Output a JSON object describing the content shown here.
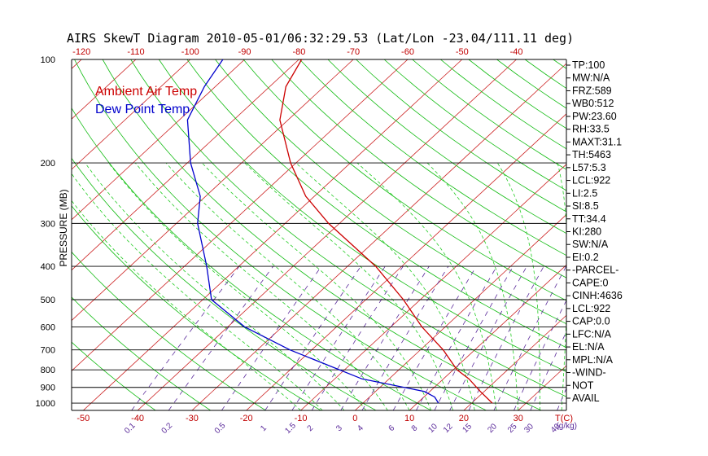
{
  "title": "AIRS SkewT Diagram 2010-05-01/06:32:29.53 (Lat/Lon -23.04/111.11 deg)",
  "chart_data": {
    "type": "line",
    "title": "AIRS SkewT Diagram 2010-05-01/06:32:29.53 (Lat/Lon -23.04/111.11 deg)",
    "ylabel": "PRESSURE (MB)",
    "yscale": "log",
    "ylim": [
      1050,
      100
    ],
    "pressure_ticks": [
      100,
      200,
      300,
      400,
      500,
      600,
      700,
      800,
      900,
      1000
    ],
    "pressure_tick_labels": [
      "100",
      "200",
      "300",
      "400",
      "500",
      "600",
      "700",
      "800",
      "900",
      "1000"
    ],
    "temp_ticks_top": [
      -120,
      -110,
      -100,
      -90,
      -80,
      -70,
      -60,
      -50,
      -40
    ],
    "temp_tick_labels_top": [
      "-120",
      "-110",
      "-100",
      "-90",
      "-80",
      "-70",
      "-60",
      "-50",
      "-40"
    ],
    "temp_ticks_bottom": [
      -50,
      -40,
      -30,
      -20,
      -10,
      0,
      10,
      20,
      30
    ],
    "temp_tick_labels_bottom": [
      "-50",
      "-40",
      "-30",
      "-20",
      "-10",
      "0",
      "10",
      "20",
      "30"
    ],
    "temp_axis_unit_label": "T(C)",
    "mixing_ratio_labels": [
      "0.1",
      "0.2",
      "0.5",
      "1",
      "1.5",
      "2",
      "3",
      "4",
      "6",
      "8",
      "10",
      "12",
      "15",
      "20",
      "25",
      "30",
      "40"
    ],
    "mixing_ratio_unit_label": "(g/kg)",
    "legend": [
      {
        "label": "Ambient Air Temp",
        "color": "#cc0000"
      },
      {
        "label": "Dew Point Temp",
        "color": "#0000cc"
      }
    ],
    "series": [
      {
        "name": "Ambient Air Temp",
        "color": "#cc0000",
        "points": [
          {
            "p": 1000,
            "t": 23.8
          },
          {
            "p": 925,
            "t": 19.3
          },
          {
            "p": 850,
            "t": 14.7
          },
          {
            "p": 800,
            "t": 10.7
          },
          {
            "p": 700,
            "t": 4.2
          },
          {
            "p": 600,
            "t": -4.3
          },
          {
            "p": 500,
            "t": -13.1
          },
          {
            "p": 400,
            "t": -24.8
          },
          {
            "p": 300,
            "t": -42.0
          },
          {
            "p": 250,
            "t": -51.6
          },
          {
            "p": 200,
            "t": -61.0
          },
          {
            "p": 150,
            "t": -71.5
          },
          {
            "p": 120,
            "t": -77.0
          },
          {
            "p": 100,
            "t": -79.5
          }
        ]
      },
      {
        "name": "Dew Point Temp",
        "color": "#0000cc",
        "points": [
          {
            "p": 1000,
            "t": 13.9
          },
          {
            "p": 960,
            "t": 12.0
          },
          {
            "p": 925,
            "t": 9.0
          },
          {
            "p": 850,
            "t": -5.0
          },
          {
            "p": 700,
            "t": -24.0
          },
          {
            "p": 600,
            "t": -36.9
          },
          {
            "p": 500,
            "t": -48.4
          },
          {
            "p": 400,
            "t": -55.9
          },
          {
            "p": 300,
            "t": -66.1
          },
          {
            "p": 250,
            "t": -71.0
          },
          {
            "p": 200,
            "t": -79.4
          },
          {
            "p": 150,
            "t": -88.5
          },
          {
            "p": 120,
            "t": -92.0
          },
          {
            "p": 100,
            "t": -94.0
          }
        ]
      }
    ],
    "indices": [
      "TP:100",
      "MW:N/A",
      "FRZ:589",
      "WB0:512",
      "PW:23.60",
      "RH:33.5",
      "MAXT:31.1",
      "TH:5463",
      "L57:5.3",
      "LCL:922",
      "LI:2.5",
      "SI:8.5",
      "TT:34.4",
      "KI:280",
      "SW:N/A",
      "EI:0.2",
      "-PARCEL-",
      "CAPE:0",
      "CINH:4636",
      "LCL:922",
      "CAP:0.0",
      "LFC:N/A",
      "EL:N/A",
      "MPL:N/A",
      "-WIND-",
      "NOT",
      "AVAIL"
    ],
    "grid": true
  },
  "colors": {
    "isotherm": "#cc2222",
    "dry_adiabat": "#11bb11",
    "moist_adiabat": "#22cc22",
    "mixing_ratio": "#5a2a9a",
    "isobar": "#000000"
  }
}
